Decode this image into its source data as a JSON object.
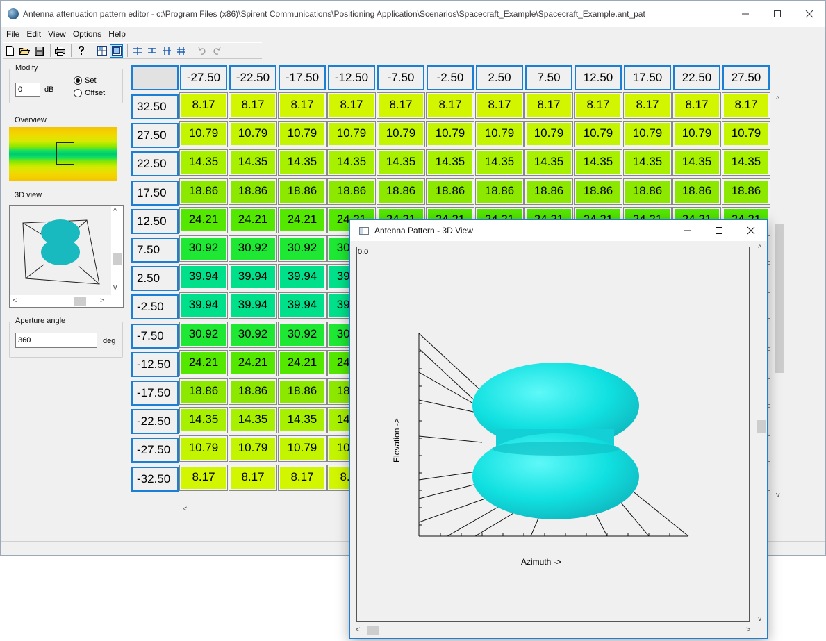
{
  "window": {
    "title": "Antenna attenuation pattern editor - c:\\Program Files (x86)\\Spirent Communications\\Positioning Application\\Scenarios\\Spacecraft_Example\\Spacecraft_Example.ant_pat",
    "minimize_icon": "minimize-icon",
    "maximize_icon": "maximize-icon",
    "close_icon": "close-icon"
  },
  "menu": [
    "File",
    "Edit",
    "View",
    "Options",
    "Help"
  ],
  "toolbar": {
    "icons": [
      "new-file-icon",
      "open-folder-icon",
      "save-icon",
      "print-icon",
      "help-icon",
      "grid-view-icon",
      "table-view-icon",
      "insert-row-icon",
      "delete-row-icon",
      "insert-column-icon",
      "delete-column-icon",
      "undo-icon",
      "redo-icon"
    ]
  },
  "modify": {
    "label": "Modify",
    "value": "0",
    "unit": "dB",
    "set_label": "Set",
    "offset_label": "Offset",
    "selected": "Set"
  },
  "overview": {
    "label": "Overview"
  },
  "view3d": {
    "label": "3D view"
  },
  "aperture": {
    "label": "Aperture angle",
    "value": "360",
    "unit": "deg"
  },
  "grid": {
    "azimuth_headers": [
      "-27.50",
      "-22.50",
      "-17.50",
      "-12.50",
      "-7.50",
      "-2.50",
      "2.50",
      "7.50",
      "12.50",
      "17.50",
      "22.50",
      "27.50"
    ],
    "elevation_headers": [
      "32.50",
      "27.50",
      "22.50",
      "17.50",
      "12.50",
      "7.50",
      "2.50",
      "-2.50",
      "-7.50",
      "-12.50",
      "-17.50",
      "-22.50",
      "-27.50",
      "-32.50"
    ],
    "row_values": [
      "8.17",
      "10.79",
      "14.35",
      "18.86",
      "24.21",
      "30.92",
      "39.94",
      "39.94",
      "30.92",
      "24.21",
      "18.86",
      "14.35",
      "10.79",
      "8.17"
    ],
    "row_colors": [
      "#d2f500",
      "#c3f500",
      "#a7f000",
      "#8de800",
      "#54e800",
      "#1ee834",
      "#00e08a",
      "#00e08a",
      "#1ee834",
      "#54e800",
      "#8de800",
      "#a7f000",
      "#c3f500",
      "#d2f500"
    ]
  },
  "popup": {
    "title": "Antenna Pattern - 3D View",
    "value": "0.0",
    "elevation_label": "Elevation ->",
    "azimuth_label": "Azimuth ->",
    "lobe_color": "#00e6e6"
  }
}
